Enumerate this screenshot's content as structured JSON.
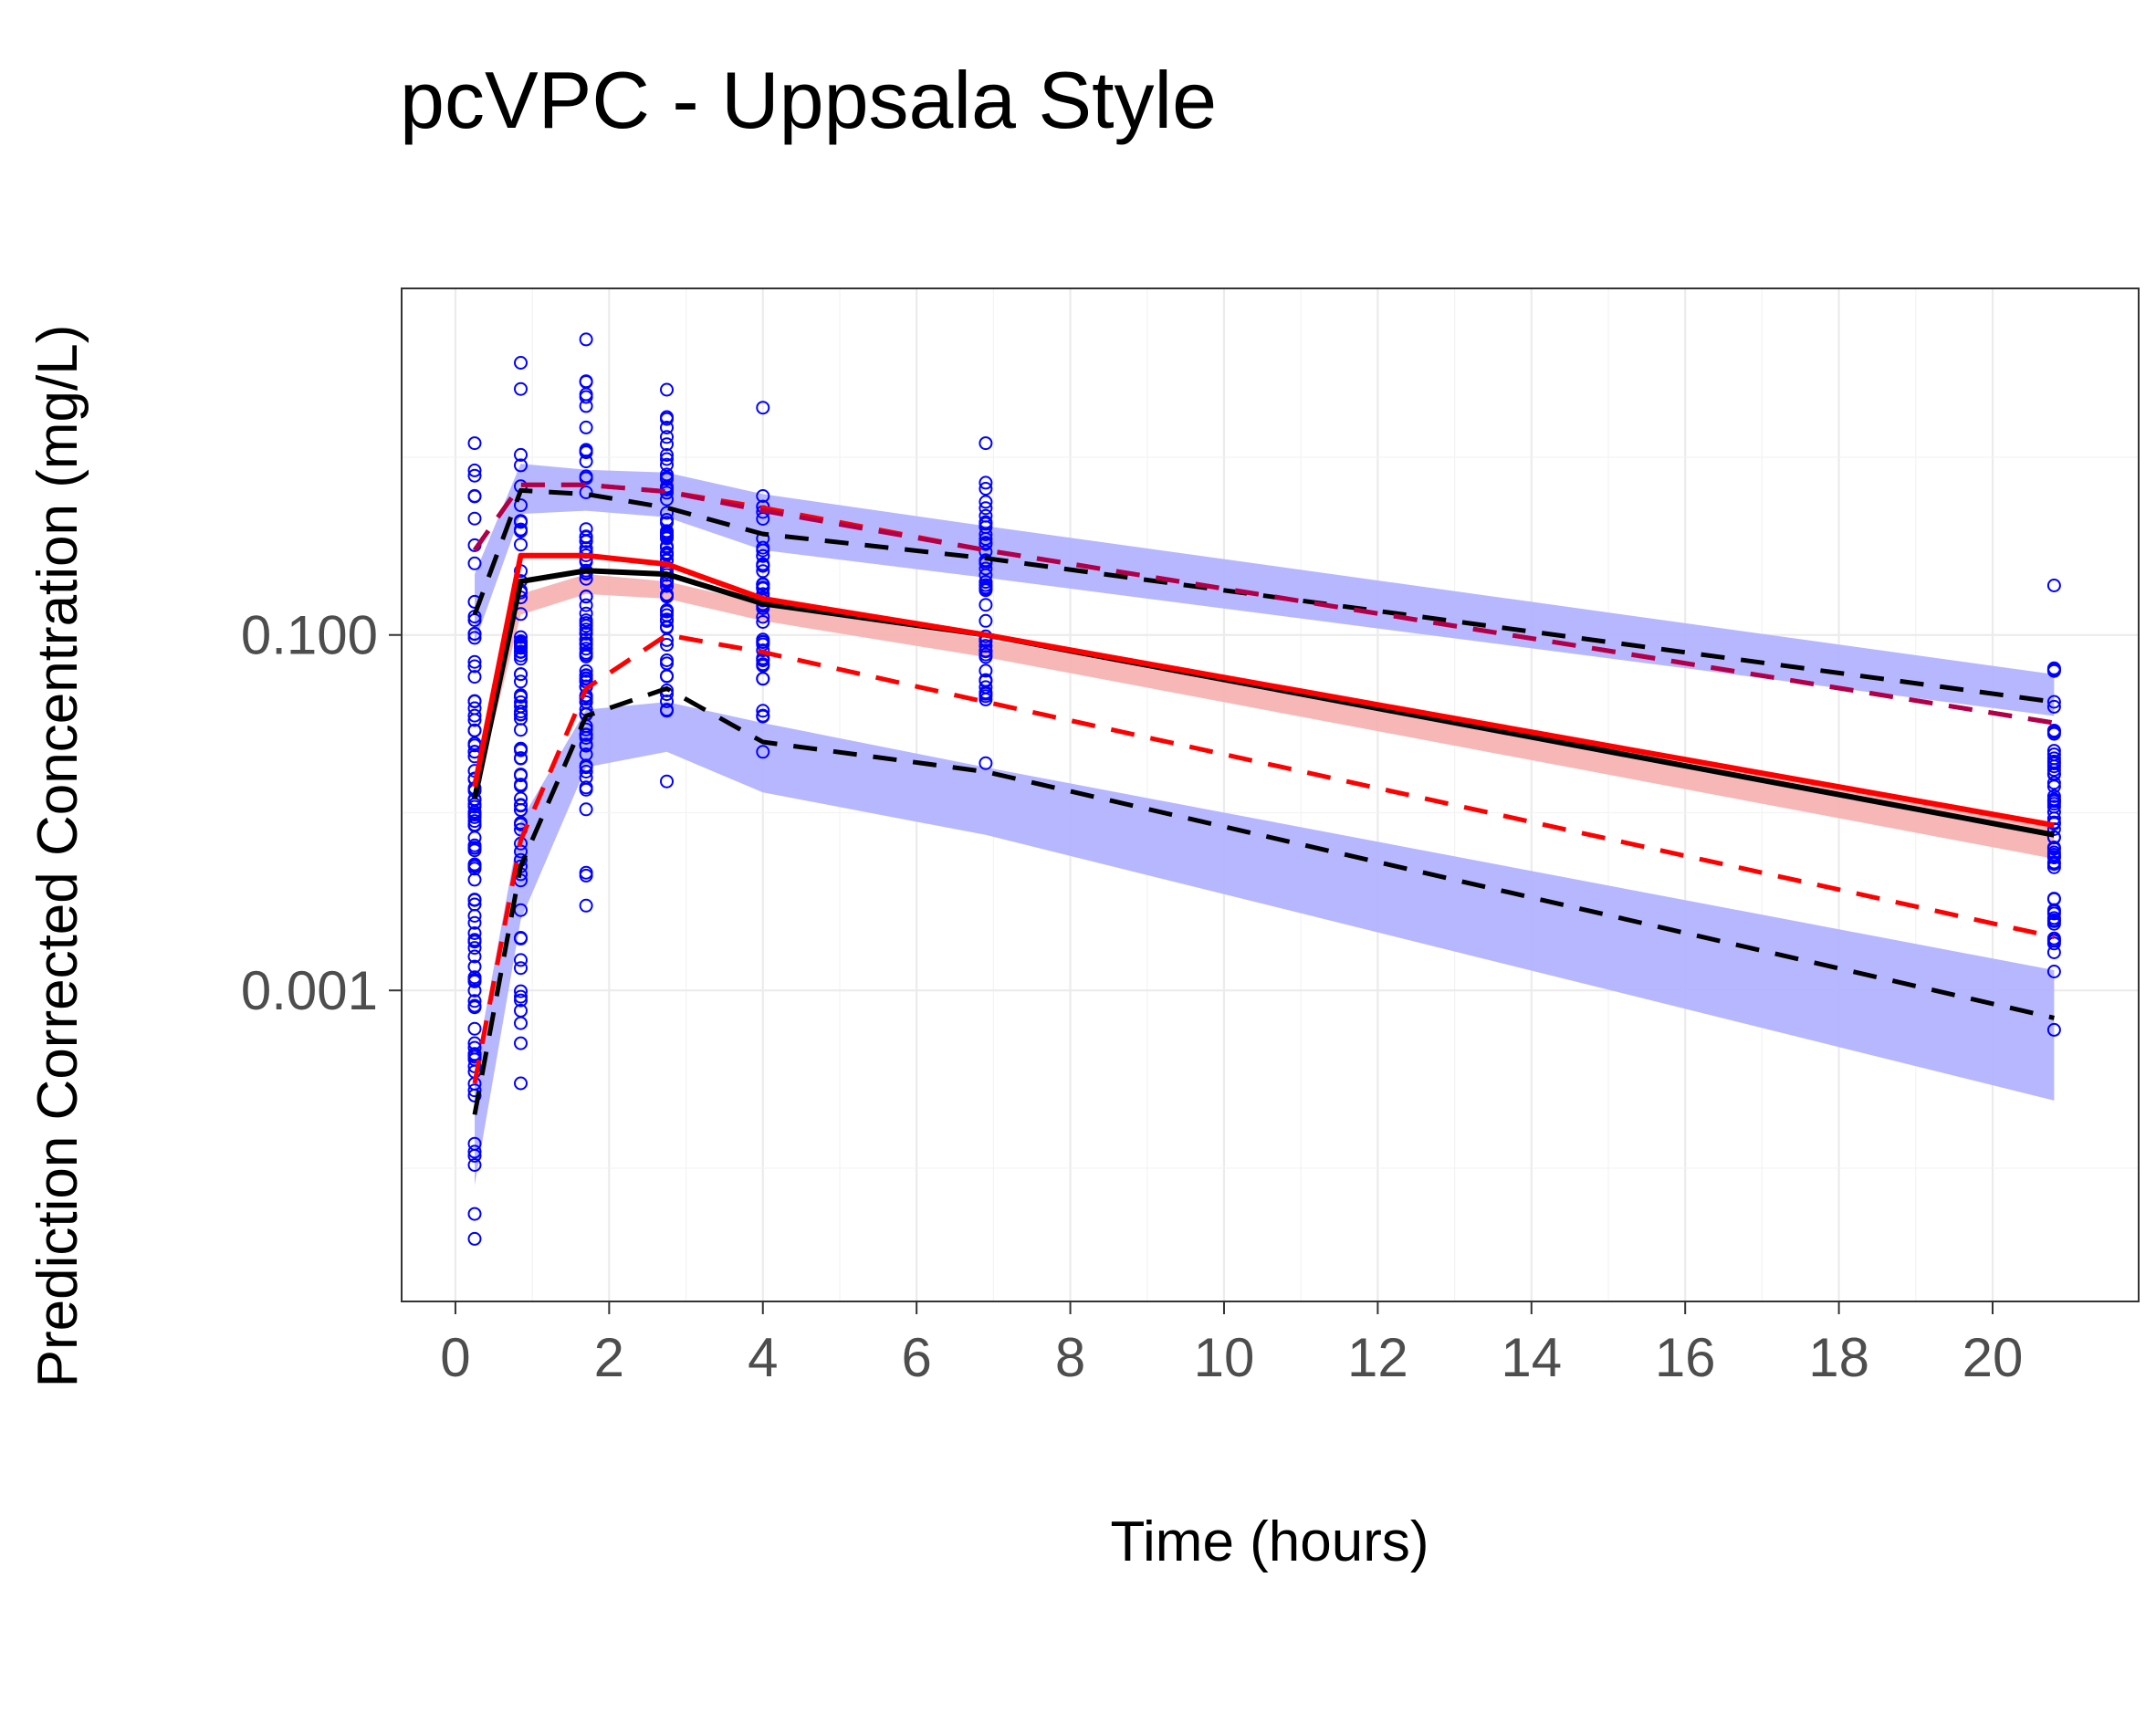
{
  "chart_data": {
    "type": "line",
    "title": "pcVPC - Uppsala Style",
    "xlabel": "Time (hours)",
    "ylabel": "Prediction Corrected Concentration (mg/L)",
    "x_scale": "linear",
    "y_scale": "log10",
    "xlim": [
      -0.7,
      21.9
    ],
    "ylim_log10": [
      -4.75,
      0.95
    ],
    "x_ticks": [
      0,
      2,
      4,
      6,
      8,
      10,
      12,
      14,
      16,
      18,
      20
    ],
    "x_tick_labels": [
      "0",
      "2",
      "4",
      "6",
      "8",
      "10",
      "12",
      "14",
      "16",
      "18",
      "20"
    ],
    "y_ticks": [
      0.1,
      0.001
    ],
    "y_tick_labels": [
      "0.100",
      "0.001"
    ],
    "grid": true,
    "legend": "none",
    "colors": {
      "points": "#0000ff",
      "pi_band": "#b3b3ff",
      "median_band": "#f7b3b3",
      "observed": "#ff0000",
      "simulated": "#000000",
      "observed_outer_upper": "#b0004a"
    },
    "bin_times": [
      0.25,
      0.85,
      1.7,
      2.75,
      4.0,
      6.9,
      20.8
    ],
    "bands": [
      {
        "name": "upper",
        "color": "#b3b3ff",
        "lower": [
          0.09,
          0.48,
          0.5,
          0.46,
          0.3,
          0.21,
          0.035
        ],
        "upper": [
          0.22,
          0.92,
          0.85,
          0.82,
          0.62,
          0.41,
          0.06
        ]
      },
      {
        "name": "median",
        "color": "#f7b3b3",
        "lower": [
          0.012,
          0.13,
          0.17,
          0.16,
          0.12,
          0.075,
          0.0055
        ],
        "upper": [
          0.016,
          0.17,
          0.22,
          0.2,
          0.15,
          0.095,
          0.0085
        ]
      },
      {
        "name": "lower",
        "color": "#b3b3ff",
        "lower": [
          8e-05,
          0.0025,
          0.018,
          0.022,
          0.013,
          0.0075,
          0.00024
        ],
        "upper": [
          0.00035,
          0.009,
          0.038,
          0.042,
          0.032,
          0.018,
          0.0013
        ]
      }
    ],
    "series": [
      {
        "color": "#000000",
        "dash": true,
        "y": [
          0.13,
          0.65,
          0.62,
          0.52,
          0.37,
          0.27,
          0.042
        ]
      },
      {
        "color": "#000000",
        "dash": false,
        "y": [
          0.012,
          0.2,
          0.23,
          0.22,
          0.15,
          0.1,
          0.0075
        ]
      },
      {
        "color": "#000000",
        "dash": true,
        "y": [
          0.0002,
          0.005,
          0.035,
          0.05,
          0.025,
          0.017,
          0.0007
        ]
      },
      {
        "color": "#ff0000",
        "dash": true,
        "y": [
          0.3,
          0.7,
          0.7,
          0.64,
          0.52,
          0.3,
          0.032
        ]
      },
      {
        "color": "#ff0000",
        "dash": false,
        "y": [
          0.014,
          0.28,
          0.28,
          0.25,
          0.16,
          0.1,
          0.0085
        ]
      },
      {
        "color": "#ff0000",
        "dash": true,
        "y": [
          0.0003,
          0.007,
          0.05,
          0.1,
          0.08,
          0.042,
          0.002
        ]
      },
      {
        "color": "#b0004a",
        "dash": true,
        "y": [
          0.3,
          0.7,
          0.7,
          0.64,
          0.5,
          0.3,
          0.032
        ]
      }
    ],
    "observations": [
      {
        "x": 0.25,
        "range": [
          4e-05,
          1.2
        ],
        "n": 95
      },
      {
        "x": 0.85,
        "range": [
          0.0003,
          3.4
        ],
        "n": 80
      },
      {
        "x": 1.7,
        "range": [
          0.003,
          4.6
        ],
        "n": 85
      },
      {
        "x": 2.75,
        "range": [
          0.015,
          2.4
        ],
        "n": 70
      },
      {
        "x": 4.0,
        "range": [
          0.022,
          1.9
        ],
        "n": 45
      },
      {
        "x": 6.9,
        "range": [
          0.019,
          1.2
        ],
        "n": 45
      },
      {
        "x": 20.8,
        "range": [
          0.0006,
          0.19
        ],
        "n": 60
      }
    ]
  }
}
